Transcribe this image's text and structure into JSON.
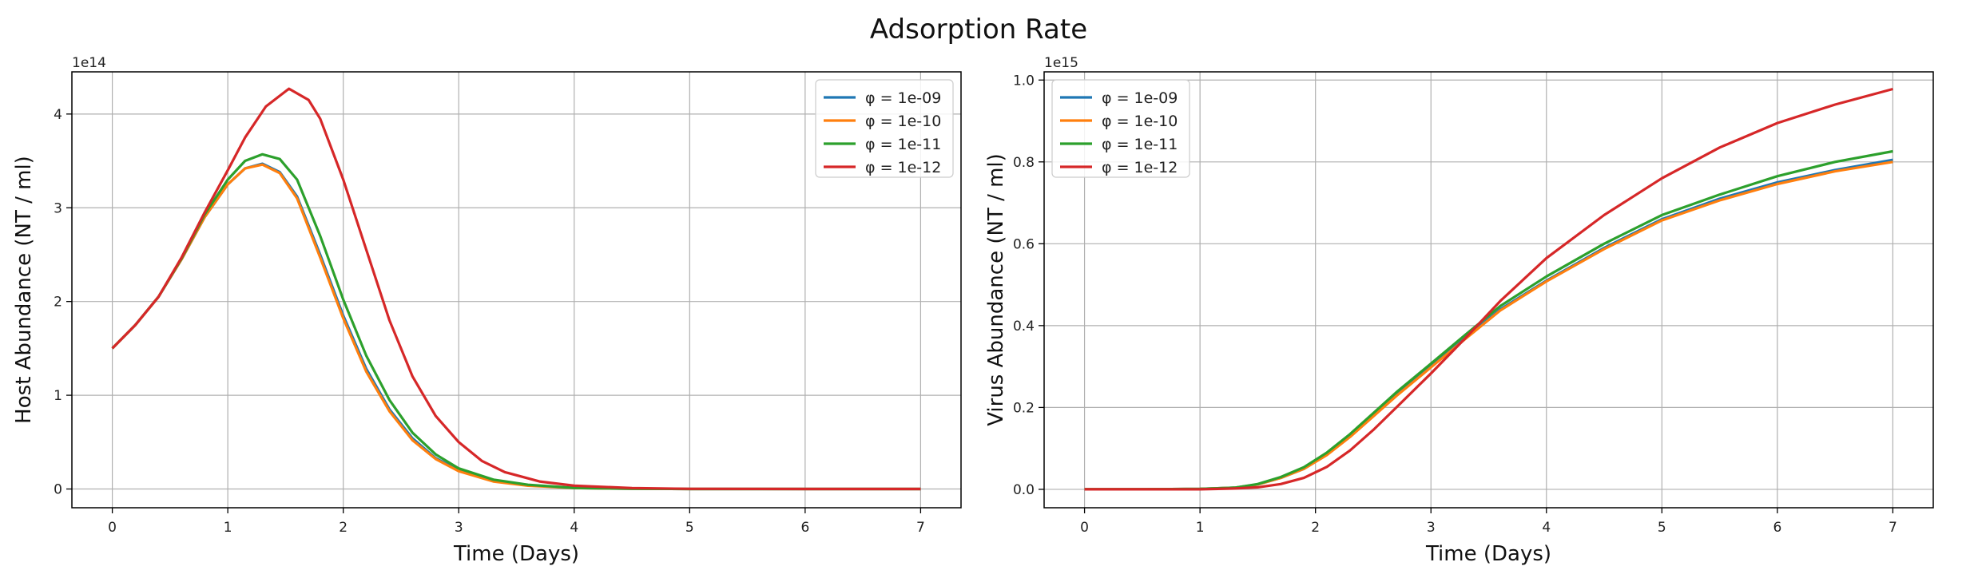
{
  "figure": {
    "title": "Adsorption Rate"
  },
  "chart_data": [
    {
      "type": "line",
      "xlabel": "Time (Days)",
      "ylabel": "Host Abundance (NT / ml)",
      "offset_text": "1e14",
      "y_scale": 100000000000000.0,
      "xlim": [
        -0.35,
        7.35
      ],
      "ylim": [
        -0.2,
        4.45
      ],
      "xticks": [
        0,
        1,
        2,
        3,
        4,
        5,
        6,
        7
      ],
      "yticks": [
        0,
        1,
        2,
        3,
        4
      ],
      "grid": true,
      "legend_placement": "top-right",
      "series": [
        {
          "name": "φ = 1e-09",
          "color": "#1f77b4",
          "x": [
            0,
            0.2,
            0.4,
            0.6,
            0.8,
            1.0,
            1.15,
            1.3,
            1.45,
            1.6,
            1.8,
            2.0,
            2.2,
            2.4,
            2.6,
            2.8,
            3.0,
            3.3,
            3.6,
            4.0,
            4.5,
            5.0,
            6.0,
            7.0
          ],
          "y": [
            1.5,
            1.75,
            2.05,
            2.45,
            2.9,
            3.25,
            3.42,
            3.47,
            3.38,
            3.12,
            2.5,
            1.85,
            1.28,
            0.85,
            0.54,
            0.33,
            0.2,
            0.09,
            0.04,
            0.01,
            0.003,
            0.0,
            0.0,
            0.0
          ]
        },
        {
          "name": "φ = 1e-10",
          "color": "#ff7f0e",
          "x": [
            0,
            0.2,
            0.4,
            0.6,
            0.8,
            1.0,
            1.15,
            1.3,
            1.45,
            1.6,
            1.8,
            2.0,
            2.2,
            2.4,
            2.6,
            2.8,
            3.0,
            3.3,
            3.6,
            4.0,
            4.5,
            5.0,
            6.0,
            7.0
          ],
          "y": [
            1.5,
            1.75,
            2.05,
            2.45,
            2.9,
            3.25,
            3.42,
            3.46,
            3.37,
            3.1,
            2.47,
            1.82,
            1.25,
            0.83,
            0.52,
            0.32,
            0.19,
            0.08,
            0.035,
            0.01,
            0.003,
            0.0,
            0.0,
            0.0
          ]
        },
        {
          "name": "φ = 1e-11",
          "color": "#2ca02c",
          "x": [
            0,
            0.2,
            0.4,
            0.6,
            0.8,
            1.0,
            1.15,
            1.3,
            1.45,
            1.6,
            1.8,
            2.0,
            2.2,
            2.4,
            2.6,
            2.8,
            3.0,
            3.3,
            3.6,
            4.0,
            4.5,
            5.0,
            6.0,
            7.0
          ],
          "y": [
            1.5,
            1.75,
            2.05,
            2.46,
            2.93,
            3.3,
            3.5,
            3.57,
            3.52,
            3.3,
            2.7,
            2.02,
            1.42,
            0.95,
            0.6,
            0.37,
            0.22,
            0.1,
            0.045,
            0.012,
            0.003,
            0.0,
            0.0,
            0.0
          ]
        },
        {
          "name": "φ = 1e-12",
          "color": "#d62728",
          "x": [
            0,
            0.2,
            0.4,
            0.6,
            0.8,
            1.0,
            1.15,
            1.33,
            1.53,
            1.7,
            1.8,
            2.0,
            2.2,
            2.4,
            2.6,
            2.8,
            3.0,
            3.2,
            3.4,
            3.7,
            4.0,
            4.5,
            5.0,
            6.0,
            7.0
          ],
          "y": [
            1.5,
            1.75,
            2.05,
            2.47,
            2.95,
            3.4,
            3.75,
            4.08,
            4.27,
            4.15,
            3.95,
            3.3,
            2.55,
            1.8,
            1.2,
            0.78,
            0.5,
            0.3,
            0.18,
            0.08,
            0.035,
            0.01,
            0.002,
            0.0,
            0.0
          ]
        }
      ]
    },
    {
      "type": "line",
      "xlabel": "Time (Days)",
      "ylabel": "Virus Abundance (NT / ml)",
      "offset_text": "1e15",
      "y_scale": 1000000000000000.0,
      "xlim": [
        -0.35,
        7.35
      ],
      "ylim": [
        -0.045,
        1.02
      ],
      "xticks": [
        0,
        1,
        2,
        3,
        4,
        5,
        6,
        7
      ],
      "yticks": [
        0.0,
        0.2,
        0.4,
        0.6,
        0.8,
        1.0
      ],
      "ytick_labels": [
        "0.0",
        "0.2",
        "0.4",
        "0.6",
        "0.8",
        "1.0"
      ],
      "grid": true,
      "legend_placement": "top-left",
      "series": [
        {
          "name": "φ = 1e-09",
          "color": "#1f77b4",
          "x": [
            0,
            0.5,
            1.0,
            1.3,
            1.5,
            1.7,
            1.9,
            2.1,
            2.3,
            2.5,
            2.7,
            3.0,
            3.3,
            3.6,
            4.0,
            4.5,
            5.0,
            5.5,
            6.0,
            6.5,
            7.0
          ],
          "y": [
            0.0,
            0.0,
            0.001,
            0.004,
            0.012,
            0.028,
            0.05,
            0.085,
            0.13,
            0.18,
            0.23,
            0.3,
            0.37,
            0.44,
            0.51,
            0.59,
            0.66,
            0.71,
            0.75,
            0.78,
            0.805
          ]
        },
        {
          "name": "φ = 1e-10",
          "color": "#ff7f0e",
          "x": [
            0,
            0.5,
            1.0,
            1.3,
            1.5,
            1.7,
            1.9,
            2.1,
            2.3,
            2.5,
            2.7,
            3.0,
            3.3,
            3.6,
            4.0,
            4.5,
            5.0,
            5.5,
            6.0,
            6.5,
            7.0
          ],
          "y": [
            0.0,
            0.0,
            0.001,
            0.004,
            0.012,
            0.028,
            0.05,
            0.084,
            0.128,
            0.178,
            0.228,
            0.298,
            0.368,
            0.437,
            0.508,
            0.587,
            0.657,
            0.706,
            0.746,
            0.777,
            0.8
          ]
        },
        {
          "name": "φ = 1e-11",
          "color": "#2ca02c",
          "x": [
            0,
            0.5,
            1.0,
            1.3,
            1.5,
            1.7,
            1.9,
            2.1,
            2.3,
            2.5,
            2.7,
            3.0,
            3.3,
            3.6,
            4.0,
            4.5,
            5.0,
            5.5,
            6.0,
            6.5,
            7.0
          ],
          "y": [
            0.0,
            0.0,
            0.001,
            0.004,
            0.013,
            0.03,
            0.054,
            0.09,
            0.135,
            0.186,
            0.237,
            0.307,
            0.378,
            0.448,
            0.52,
            0.6,
            0.67,
            0.72,
            0.765,
            0.8,
            0.826
          ]
        },
        {
          "name": "φ = 1e-12",
          "color": "#d62728",
          "x": [
            0,
            0.5,
            1.0,
            1.3,
            1.5,
            1.7,
            1.9,
            2.1,
            2.3,
            2.5,
            2.7,
            3.0,
            3.3,
            3.6,
            4.0,
            4.5,
            5.0,
            5.5,
            6.0,
            6.5,
            7.0
          ],
          "y": [
            0.0,
            0.0,
            0.0,
            0.002,
            0.005,
            0.013,
            0.028,
            0.055,
            0.095,
            0.145,
            0.2,
            0.283,
            0.37,
            0.46,
            0.565,
            0.67,
            0.76,
            0.835,
            0.895,
            0.94,
            0.978
          ]
        }
      ]
    }
  ]
}
